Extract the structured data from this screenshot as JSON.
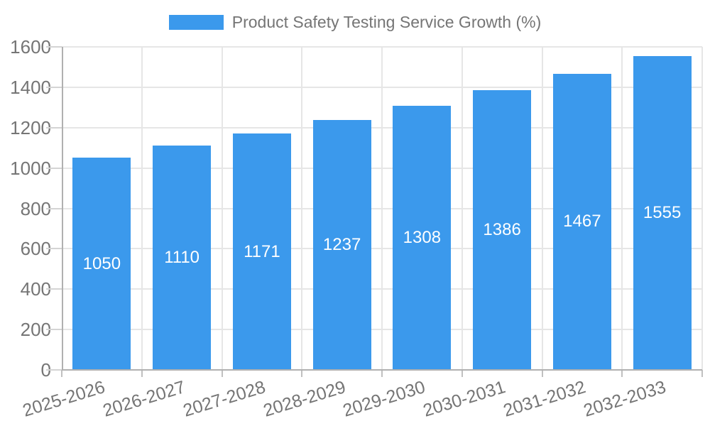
{
  "chart_data": {
    "type": "bar",
    "title": "Product Safety Testing Service Growth (%)",
    "legend": {
      "position": "top",
      "entries": [
        "Product Safety Testing Service Growth (%)"
      ]
    },
    "categories": [
      "2025-2026",
      "2026-2027",
      "2027-2028",
      "2028-2029",
      "2029-2030",
      "2030-2031",
      "2031-2032",
      "2032-2033"
    ],
    "values": [
      1050,
      1110,
      1171,
      1237,
      1308,
      1386,
      1467,
      1555
    ],
    "xlabel": "",
    "ylabel": "",
    "ylim": [
      0,
      1600
    ],
    "yticks": [
      0,
      200,
      400,
      600,
      800,
      1000,
      1200,
      1400,
      1600
    ],
    "grid": true,
    "x_label_rotation_deg": -17,
    "colors": {
      "bar": "#3B99EC",
      "bar_label": "#FFFFFF",
      "axis_text": "#757575",
      "grid_line": "#E6E6E6",
      "axis_line": "#B0B0B0",
      "background": "#FFFFFF"
    }
  }
}
